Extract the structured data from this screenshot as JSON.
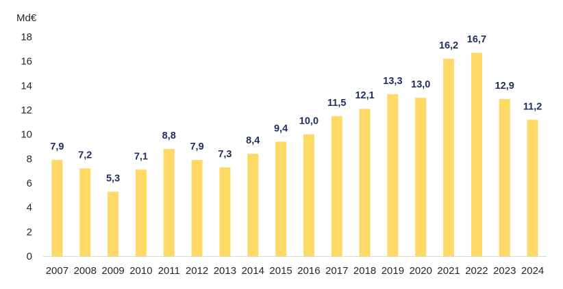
{
  "chart_data": {
    "type": "bar",
    "unit_label": "Md€",
    "categories": [
      "2007",
      "2008",
      "2009",
      "2010",
      "2011",
      "2012",
      "2013",
      "2014",
      "2015",
      "2016",
      "2017",
      "2018",
      "2019",
      "2020",
      "2021",
      "2022",
      "2023",
      "2024"
    ],
    "values": [
      7.9,
      7.2,
      5.3,
      7.1,
      8.8,
      7.9,
      7.3,
      8.4,
      9.4,
      10.0,
      11.5,
      12.1,
      13.3,
      13.0,
      16.2,
      16.7,
      12.9,
      11.2
    ],
    "data_labels": [
      "7,9",
      "7,2",
      "5,3",
      "7,1",
      "8,8",
      "7,9",
      "7,3",
      "8,4",
      "9,4",
      "10,0",
      "11,5",
      "12,1",
      "13,3",
      "13,0",
      "16,2",
      "16,7",
      "12,9",
      "11,2"
    ],
    "y_ticks": [
      "0",
      "2",
      "4",
      "6",
      "8",
      "10",
      "12",
      "14",
      "16",
      "18"
    ],
    "ylim": [
      0,
      18
    ],
    "grid": false,
    "legend": "none",
    "bar_color": "#ffd966",
    "axis_color": "#d9d9d9"
  }
}
